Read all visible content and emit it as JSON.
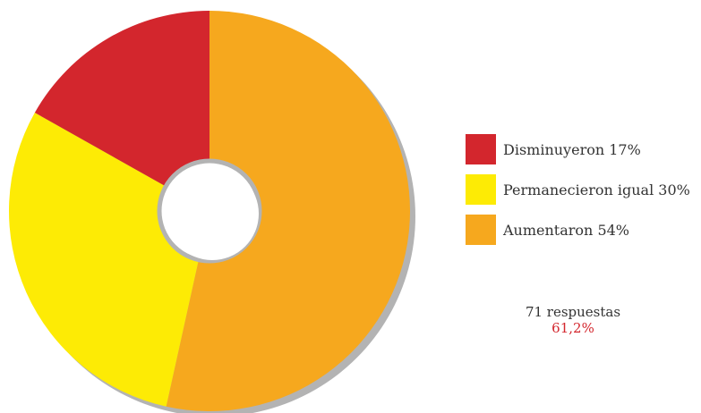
{
  "chart_data": {
    "type": "pie",
    "title": "",
    "categories": [
      "Disminuyeron",
      "Permanecieron igual",
      "Aumentaron"
    ],
    "values": [
      17,
      30,
      54
    ],
    "unit": "%",
    "colors": [
      "#d3262d",
      "#fdeb05",
      "#f6a81e"
    ],
    "legend": {
      "placement": "right",
      "items": [
        {
          "label": "Disminuyeron 17%",
          "color": "#d3262d"
        },
        {
          "label": "Permanecieron igual 30%",
          "color": "#fdeb05"
        },
        {
          "label": "Aumentaron 54%",
          "color": "#f6a81e"
        }
      ]
    },
    "annotations": {
      "responses": "71 respuestas",
      "percent": "61,2%"
    },
    "shadow_color": "#b3b3b3"
  }
}
